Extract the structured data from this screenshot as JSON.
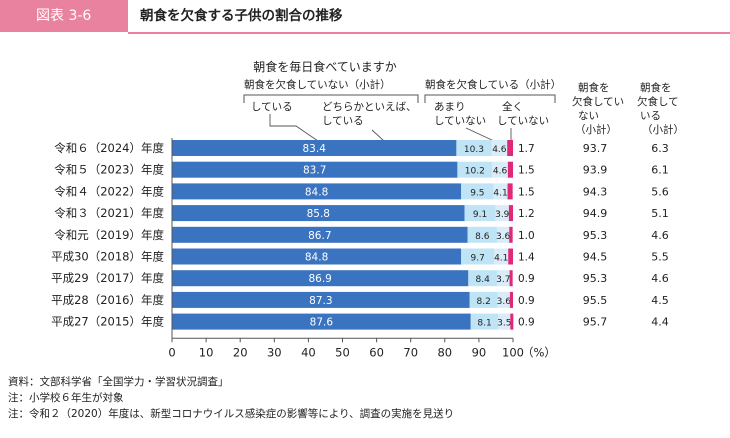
{
  "header": {
    "figure_label": "図表 3-6",
    "title": "朝食を欠食する子供の割合の推移"
  },
  "legend": {
    "question": "朝食を毎日食べていますか",
    "group_not_skip": "朝食を欠食していない（小計）",
    "group_skip": "朝食を欠食している（小計）",
    "cat1": "している",
    "cat2_line1": "どちらかといえば、",
    "cat2_line2": "している",
    "cat3_line1": "あまり",
    "cat3_line2": "していない",
    "cat4_line1": "全く",
    "cat4_line2": "していない"
  },
  "table_headers": {
    "not_skip": [
      "朝食を",
      "欠食してい",
      "ない",
      "（小計）"
    ],
    "skip": [
      "朝食を",
      "欠食して",
      "いる",
      "（小計）"
    ]
  },
  "axis": {
    "ticks": [
      "0",
      "10",
      "20",
      "30",
      "40",
      "50",
      "60",
      "70",
      "80",
      "90",
      "100"
    ],
    "unit": "（%）"
  },
  "notes": [
    "資料：文部科学省「全国学力・学習状況調査」",
    "注：小学校６年生が対象",
    "注：令和２（2020）年度は、新型コロナウイルス感染症の影響等により、調査の実施を見送り"
  ],
  "colors": {
    "accent_pink": "#e8829e",
    "seg_doing": "#3a73bf",
    "seg_somewhat": "#bfe4f6",
    "seg_rarely": "#d9ecf8",
    "seg_never": "#e0287a"
  },
  "chart_data": {
    "type": "bar",
    "orientation": "horizontal",
    "stacked": true,
    "xlim": [
      0,
      100
    ],
    "categories": [
      "令和６（2024）年度",
      "令和５（2023）年度",
      "令和４（2022）年度",
      "令和３（2021）年度",
      "令和元（2019）年度",
      "平成30（2018）年度",
      "平成29（2017）年度",
      "平成28（2016）年度",
      "平成27（2015）年度"
    ],
    "series": [
      {
        "name": "している",
        "values": [
          83.4,
          83.7,
          84.8,
          85.8,
          86.7,
          84.8,
          86.9,
          87.3,
          87.6
        ]
      },
      {
        "name": "どちらかといえば、している",
        "values": [
          10.3,
          10.2,
          9.5,
          9.1,
          8.6,
          9.7,
          8.4,
          8.2,
          8.1
        ]
      },
      {
        "name": "あまりしていない",
        "values": [
          4.6,
          4.6,
          4.1,
          3.9,
          3.6,
          4.1,
          3.7,
          3.6,
          3.5
        ]
      },
      {
        "name": "全くしていない",
        "values": [
          1.7,
          1.5,
          1.5,
          1.2,
          1.0,
          1.4,
          0.9,
          0.9,
          0.9
        ]
      }
    ],
    "subtotal_not_skip": [
      "93.7",
      "93.9",
      "94.3",
      "94.9",
      "95.3",
      "94.5",
      "95.3",
      "95.5",
      "95.7"
    ],
    "subtotal_skip": [
      "6.3",
      "6.1",
      "5.6",
      "5.1",
      "4.6",
      "5.5",
      "4.6",
      "4.5",
      "4.4"
    ]
  }
}
